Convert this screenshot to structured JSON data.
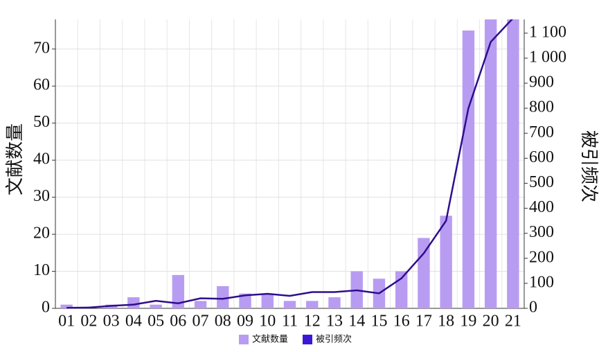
{
  "chart_data": {
    "type": "bar-line",
    "y_label": "文献数量",
    "y2_label": "被引频次",
    "categories": [
      "01",
      "02",
      "03",
      "04",
      "05",
      "06",
      "07",
      "08",
      "09",
      "10",
      "11",
      "12",
      "13",
      "14",
      "15",
      "16",
      "17",
      "18",
      "19",
      "20",
      "21"
    ],
    "series": [
      {
        "name": "文献数量",
        "type": "bar",
        "color": "#b89cf2",
        "values": [
          1,
          0,
          1,
          3,
          1,
          9,
          2,
          6,
          4,
          4,
          2,
          2,
          3,
          10,
          8,
          10,
          19,
          25,
          75,
          78,
          78
        ]
      },
      {
        "name": "被引频次",
        "type": "line",
        "axis": "y2",
        "color": "#2e0d8c",
        "legend_color": "#3b18d6",
        "values": [
          2,
          3,
          10,
          15,
          30,
          20,
          40,
          38,
          52,
          58,
          50,
          65,
          65,
          72,
          60,
          120,
          220,
          350,
          800,
          1065,
          1160
        ]
      }
    ],
    "ylim": [
      0,
      78
    ],
    "yticks": [
      0,
      10,
      20,
      30,
      40,
      50,
      60,
      70
    ],
    "y2lim": [
      0,
      1155
    ],
    "y2ticks": [
      0,
      100,
      200,
      300,
      400,
      500,
      600,
      700,
      800,
      900,
      {
        "value": 1000,
        "label": "1 000"
      },
      {
        "value": 1100,
        "label": "1 100"
      }
    ],
    "grid": true
  }
}
